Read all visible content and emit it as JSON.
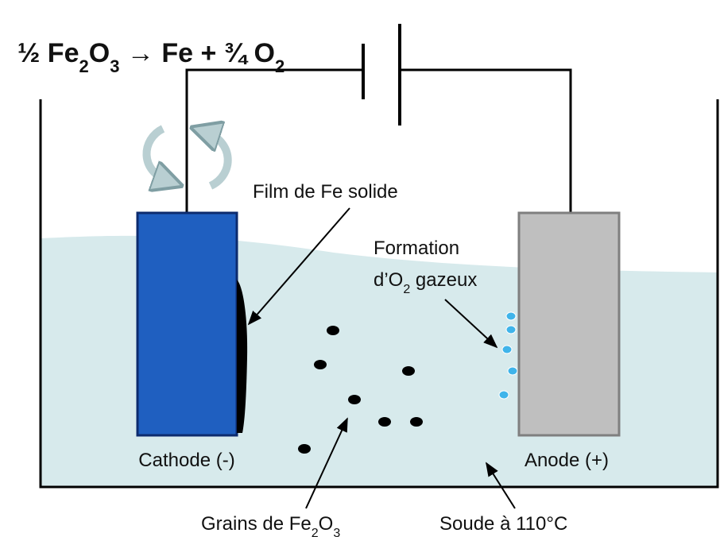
{
  "equation": [
    "½ Fe",
    "2",
    "O",
    "3",
    " → Fe + ¾ O",
    "2"
  ],
  "labels": {
    "film": "Film de Fe solide",
    "formation_line1": "Formation",
    "formation_line2": [
      "d’O",
      "2",
      " gazeux"
    ],
    "cathode": "Cathode (-)",
    "anode": "Anode (+)",
    "grains": [
      "Grains de Fe",
      "2",
      "O",
      "3"
    ],
    "soude": "Soude à 110°C"
  }
}
